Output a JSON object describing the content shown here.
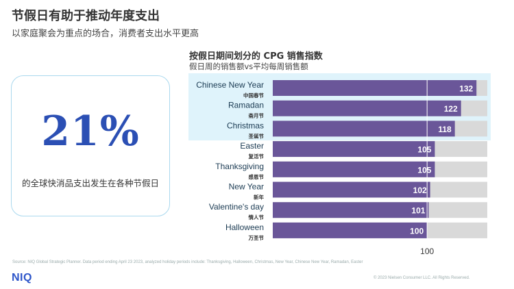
{
  "header": {
    "title": "节假日有助于推动年度支出",
    "subtitle": "以家庭聚会为重点的场合，消费者支出水平更高"
  },
  "stat": {
    "value": "21%",
    "description": "的全球快消品支出发生在各种节假日"
  },
  "chart_header": {
    "title": "按假日期间划分的 CPG 销售指数",
    "subtitle": "假日周的销售额vs平均每周销售额"
  },
  "chart_data": {
    "type": "bar",
    "orientation": "horizontal",
    "title": "按假日期间划分的 CPG 销售指数",
    "subtitle": "假日周的销售额vs平均每周销售额",
    "categories": [
      "Chinese New Year",
      "Ramadan",
      "Christmas",
      "Easter",
      "Thanksgiving",
      "New Year",
      "Valentine's day",
      "Halloween"
    ],
    "categories_zh": [
      "中国春节",
      "斋月节",
      "圣诞节",
      "复活节",
      "感恩节",
      "新年",
      "情人节",
      "万圣节"
    ],
    "values": [
      132,
      122,
      118,
      105,
      105,
      102,
      101,
      100
    ],
    "reference_value": 100,
    "reference_label": "100",
    "highlighted_categories": [
      "Chinese New Year",
      "Ramadan",
      "Christmas"
    ],
    "xlim": [
      0,
      139
    ],
    "colors": {
      "bar": "#6a5699",
      "track": "#d9d9d9",
      "highlight": "#dff3fb",
      "value_text": "#ffffff",
      "label_text": "#1a3a52"
    }
  },
  "footer": {
    "source": "Source: NIQ Global Strategic Planner. Data period ending April 23 2023, analyzed holiday periods include: Thanksgiving, Halloween, Christmas, New Year, Chinese New Year, Ramadan, Easter",
    "logo": "NIQ",
    "copyright": "© 2023 Nielsen Consumer LLC. All Rights Reserved."
  }
}
